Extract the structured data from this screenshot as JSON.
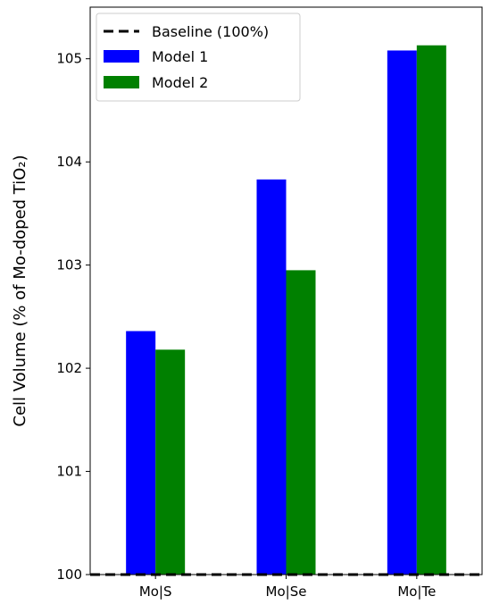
{
  "chart_data": {
    "type": "bar",
    "title": "",
    "xlabel": "",
    "ylabel": "Cell Volume (% of Mo-doped TiO₂)",
    "categories": [
      "Mo|S",
      "Mo|Se",
      "Mo|Te"
    ],
    "series": [
      {
        "name": "Model 1",
        "color": "#0000ff",
        "values": [
          102.36,
          103.83,
          105.08
        ]
      },
      {
        "name": "Model 2",
        "color": "#008000",
        "values": [
          102.18,
          102.95,
          105.13
        ]
      }
    ],
    "baseline": {
      "name": "Baseline (100%)",
      "value": 100,
      "color": "#000000",
      "style": "dashed"
    },
    "ylim": [
      100,
      105.5
    ],
    "yticks": [
      100,
      101,
      102,
      103,
      104,
      105
    ],
    "grid": false,
    "legend_position": "top-left"
  }
}
